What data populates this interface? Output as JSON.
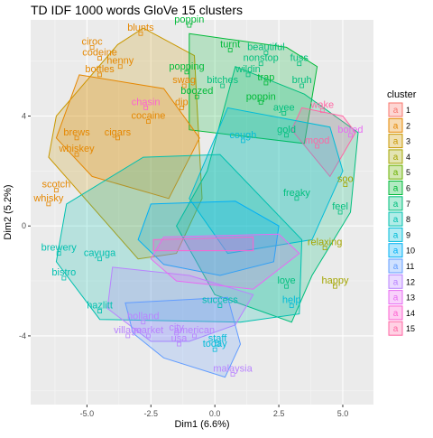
{
  "chart_data": {
    "type": "scatter",
    "title": "TD IDF 1000 words GloVe 15 clusters",
    "xlabel": "Dim1 (6.6%)",
    "ylabel": "Dim2 (5.2%)",
    "xlim": [
      -7.2,
      6.2
    ],
    "ylim": [
      -6.5,
      7.5
    ],
    "x_ticks": [
      -5.0,
      -2.5,
      0.0,
      2.5,
      5.0
    ],
    "x_tick_labels": [
      "-5.0",
      "-2.5",
      "0.0",
      "2.5",
      "5.0"
    ],
    "y_ticks": [
      -4,
      0,
      4
    ],
    "y_tick_labels": [
      "-4",
      "0",
      "4"
    ],
    "grid": true,
    "legend": {
      "title": "cluster",
      "position": "right",
      "entries": [
        "1",
        "2",
        "3",
        "4",
        "5",
        "6",
        "7",
        "8",
        "9",
        "10",
        "11",
        "12",
        "13",
        "14",
        "15"
      ]
    },
    "colors": [
      "#F8766D",
      "#E58700",
      "#C99800",
      "#A3A500",
      "#6BB100",
      "#00BA38",
      "#00BF7D",
      "#00C0AF",
      "#00BCD8",
      "#00B0F6",
      "#619CFF",
      "#B983FF",
      "#E76BF3",
      "#FD61D1",
      "#FF67A4"
    ],
    "shapes": [
      "circle",
      "triangle",
      "plus",
      "cross",
      "diamond",
      "triangle-down",
      "square-cross",
      "star",
      "diamond-plus",
      "circle-plus",
      "triangles",
      "square-plus",
      "circle-cross",
      "square-triangle",
      "square-x"
    ],
    "hulls": [
      {
        "cluster": "3",
        "points": [
          [
            -2.8,
            7.2
          ],
          [
            -0.8,
            6.2
          ],
          [
            -0.5,
            1.0
          ],
          [
            -1.5,
            -1.0
          ],
          [
            -3.0,
            -1.2
          ],
          [
            -6.5,
            2.5
          ],
          [
            -6.2,
            4.0
          ],
          [
            -3.8,
            6.6
          ]
        ]
      },
      {
        "cluster": "6",
        "points": [
          [
            -1.0,
            7.0
          ],
          [
            2.8,
            6.5
          ],
          [
            4.0,
            5.8
          ],
          [
            3.5,
            3.0
          ],
          [
            -1.0,
            3.5
          ]
        ]
      },
      {
        "cluster": "2",
        "points": [
          [
            -5.3,
            5.5
          ],
          [
            -2.0,
            5.0
          ],
          [
            -0.6,
            3.2
          ],
          [
            -1.8,
            1.0
          ],
          [
            -4.8,
            1.8
          ],
          [
            -6.2,
            3.2
          ]
        ]
      },
      {
        "cluster": "7",
        "points": [
          [
            0.8,
            5.8
          ],
          [
            3.5,
            4.8
          ],
          [
            5.6,
            3.4
          ],
          [
            5.3,
            0.5
          ],
          [
            3.8,
            -1.8
          ],
          [
            3.0,
            -3.5
          ],
          [
            0.0,
            -2.5
          ],
          [
            -1.5,
            0.0
          ],
          [
            -0.3,
            2.0
          ]
        ]
      },
      {
        "cluster": "15",
        "points": [
          [
            3.4,
            4.3
          ],
          [
            5.0,
            4.0
          ],
          [
            5.5,
            3.4
          ],
          [
            4.5,
            1.8
          ],
          [
            3.0,
            3.5
          ]
        ]
      },
      {
        "cluster": "9",
        "points": [
          [
            0.5,
            4.3
          ],
          [
            4.5,
            3.6
          ],
          [
            5.0,
            2.0
          ],
          [
            3.8,
            -0.5
          ],
          [
            0.5,
            -1.0
          ],
          [
            -1.0,
            1.0
          ]
        ]
      },
      {
        "cluster": "8",
        "points": [
          [
            -2.8,
            2.5
          ],
          [
            0.2,
            2.6
          ],
          [
            3.4,
            -0.5
          ],
          [
            3.3,
            -3.2
          ],
          [
            1.0,
            -3.5
          ],
          [
            -4.5,
            -3.4
          ],
          [
            -6.2,
            -1.3
          ],
          [
            -5.8,
            0.8
          ]
        ]
      },
      {
        "cluster": "10",
        "points": [
          [
            -2.5,
            0.8
          ],
          [
            0.8,
            0.9
          ],
          [
            2.5,
            0.0
          ],
          [
            2.3,
            -1.3
          ],
          [
            0.2,
            -1.8
          ],
          [
            -2.0,
            -1.4
          ],
          [
            -3.0,
            -0.5
          ]
        ]
      },
      {
        "cluster": "12",
        "points": [
          [
            -4.0,
            -1.5
          ],
          [
            -1.0,
            -1.8
          ],
          [
            1.5,
            -2.5
          ],
          [
            0.8,
            -3.6
          ],
          [
            -1.0,
            -4.2
          ],
          [
            -2.5,
            -4.2
          ],
          [
            -4.2,
            -3.0
          ]
        ]
      },
      {
        "cluster": "11",
        "points": [
          [
            -3.5,
            -2.8
          ],
          [
            0.5,
            -2.6
          ],
          [
            1.0,
            -4.3
          ],
          [
            0.4,
            -5.5
          ],
          [
            -2.0,
            -4.8
          ],
          [
            -3.2,
            -3.9
          ]
        ]
      },
      {
        "cluster": "13",
        "points": [
          [
            -2.0,
            -0.4
          ],
          [
            2.5,
            -0.3
          ],
          [
            3.3,
            -1.0
          ],
          [
            1.5,
            -2.3
          ],
          [
            -1.5,
            -2.0
          ],
          [
            -2.5,
            -1.2
          ]
        ]
      },
      {
        "cluster": "14",
        "points": [
          [
            -2.4,
            -0.5
          ],
          [
            1.5,
            -0.4
          ],
          [
            1.5,
            -0.9
          ],
          [
            -2.4,
            -0.9
          ]
        ]
      }
    ],
    "labels": [
      {
        "text": "blunts",
        "x": -2.9,
        "y": 7.0,
        "cluster": "2"
      },
      {
        "text": "poppin",
        "x": -1.0,
        "y": 7.3,
        "cluster": "6"
      },
      {
        "text": "ciroc",
        "x": -4.8,
        "y": 6.5,
        "cluster": "2"
      },
      {
        "text": "codeine",
        "x": -4.5,
        "y": 6.1,
        "cluster": "2"
      },
      {
        "text": "henny",
        "x": -3.7,
        "y": 5.8,
        "cluster": "2"
      },
      {
        "text": "bottles",
        "x": -4.5,
        "y": 5.5,
        "cluster": "2"
      },
      {
        "text": "turnt",
        "x": 0.6,
        "y": 6.4,
        "cluster": "6"
      },
      {
        "text": "beautiful",
        "x": 2.0,
        "y": 6.3,
        "cluster": "7"
      },
      {
        "text": "nonstop",
        "x": 1.8,
        "y": 5.9,
        "cluster": "7"
      },
      {
        "text": "fuss",
        "x": 3.3,
        "y": 5.9,
        "cluster": "7"
      },
      {
        "text": "wildin",
        "x": 1.3,
        "y": 5.5,
        "cluster": "7"
      },
      {
        "text": "popping",
        "x": -1.1,
        "y": 5.6,
        "cluster": "6"
      },
      {
        "text": "trap",
        "x": 2.0,
        "y": 5.2,
        "cluster": "6"
      },
      {
        "text": "bruh",
        "x": 3.4,
        "y": 5.1,
        "cluster": "7"
      },
      {
        "text": "swag",
        "x": -1.2,
        "y": 5.1,
        "cluster": "2"
      },
      {
        "text": "bitches",
        "x": 0.3,
        "y": 5.1,
        "cluster": "7"
      },
      {
        "text": "boozed",
        "x": -0.7,
        "y": 4.7,
        "cluster": "6"
      },
      {
        "text": "chasin",
        "x": -2.7,
        "y": 4.3,
        "cluster": "14"
      },
      {
        "text": "dip",
        "x": -1.3,
        "y": 4.3,
        "cluster": "2"
      },
      {
        "text": "poppin",
        "x": 1.8,
        "y": 4.5,
        "cluster": "6"
      },
      {
        "text": "ayee",
        "x": 2.7,
        "y": 4.1,
        "cluster": "7"
      },
      {
        "text": "wake",
        "x": 4.2,
        "y": 4.2,
        "cluster": "15"
      },
      {
        "text": "cocaine",
        "x": -2.6,
        "y": 3.8,
        "cluster": "2"
      },
      {
        "text": "bored",
        "x": 5.3,
        "y": 3.3,
        "cluster": "13"
      },
      {
        "text": "brews",
        "x": -5.4,
        "y": 3.2,
        "cluster": "2"
      },
      {
        "text": "cigars",
        "x": -3.8,
        "y": 3.2,
        "cluster": "2"
      },
      {
        "text": "cough",
        "x": 1.1,
        "y": 3.1,
        "cluster": "9"
      },
      {
        "text": "gold",
        "x": 2.8,
        "y": 3.3,
        "cluster": "7"
      },
      {
        "text": "whiskey",
        "x": -5.4,
        "y": 2.6,
        "cluster": "2"
      },
      {
        "text": "mood",
        "x": 4.0,
        "y": 2.9,
        "cluster": "15"
      },
      {
        "text": "scotch",
        "x": -6.2,
        "y": 1.3,
        "cluster": "2"
      },
      {
        "text": "soo",
        "x": 5.1,
        "y": 1.5,
        "cluster": "4"
      },
      {
        "text": "whisky",
        "x": -6.5,
        "y": 0.8,
        "cluster": "2"
      },
      {
        "text": "freaky",
        "x": 3.2,
        "y": 1.0,
        "cluster": "7"
      },
      {
        "text": "feel",
        "x": 4.9,
        "y": 0.5,
        "cluster": "7"
      },
      {
        "text": "brewery",
        "x": -6.1,
        "y": -1.0,
        "cluster": "8"
      },
      {
        "text": "cayuga",
        "x": -4.5,
        "y": -1.2,
        "cluster": "8"
      },
      {
        "text": "bistro",
        "x": -5.9,
        "y": -1.9,
        "cluster": "8"
      },
      {
        "text": "relaxing",
        "x": 4.3,
        "y": -0.8,
        "cluster": "4"
      },
      {
        "text": "help",
        "x": 3.0,
        "y": -2.9,
        "cluster": "9"
      },
      {
        "text": "happy",
        "x": 4.7,
        "y": -2.2,
        "cluster": "4"
      },
      {
        "text": "love",
        "x": 2.8,
        "y": -2.2,
        "cluster": "7"
      },
      {
        "text": "hazlitt",
        "x": -4.5,
        "y": -3.1,
        "cluster": "8"
      },
      {
        "text": "holland",
        "x": -2.8,
        "y": -3.5,
        "cluster": "12"
      },
      {
        "text": "success",
        "x": 0.2,
        "y": -2.9,
        "cluster": "8"
      },
      {
        "text": "city",
        "x": -1.5,
        "y": -3.9,
        "cluster": "12"
      },
      {
        "text": "village",
        "x": -3.4,
        "y": -4.0,
        "cluster": "12"
      },
      {
        "text": "market",
        "x": -2.6,
        "y": -4.0,
        "cluster": "12"
      },
      {
        "text": "american",
        "x": -0.8,
        "y": -4.0,
        "cluster": "12"
      },
      {
        "text": "usa",
        "x": -1.4,
        "y": -4.3,
        "cluster": "12"
      },
      {
        "text": "staff",
        "x": 0.1,
        "y": -4.3,
        "cluster": "9"
      },
      {
        "text": "today",
        "x": 0.0,
        "y": -4.5,
        "cluster": "9"
      },
      {
        "text": "malaysia",
        "x": 0.7,
        "y": -5.4,
        "cluster": "12"
      }
    ]
  }
}
